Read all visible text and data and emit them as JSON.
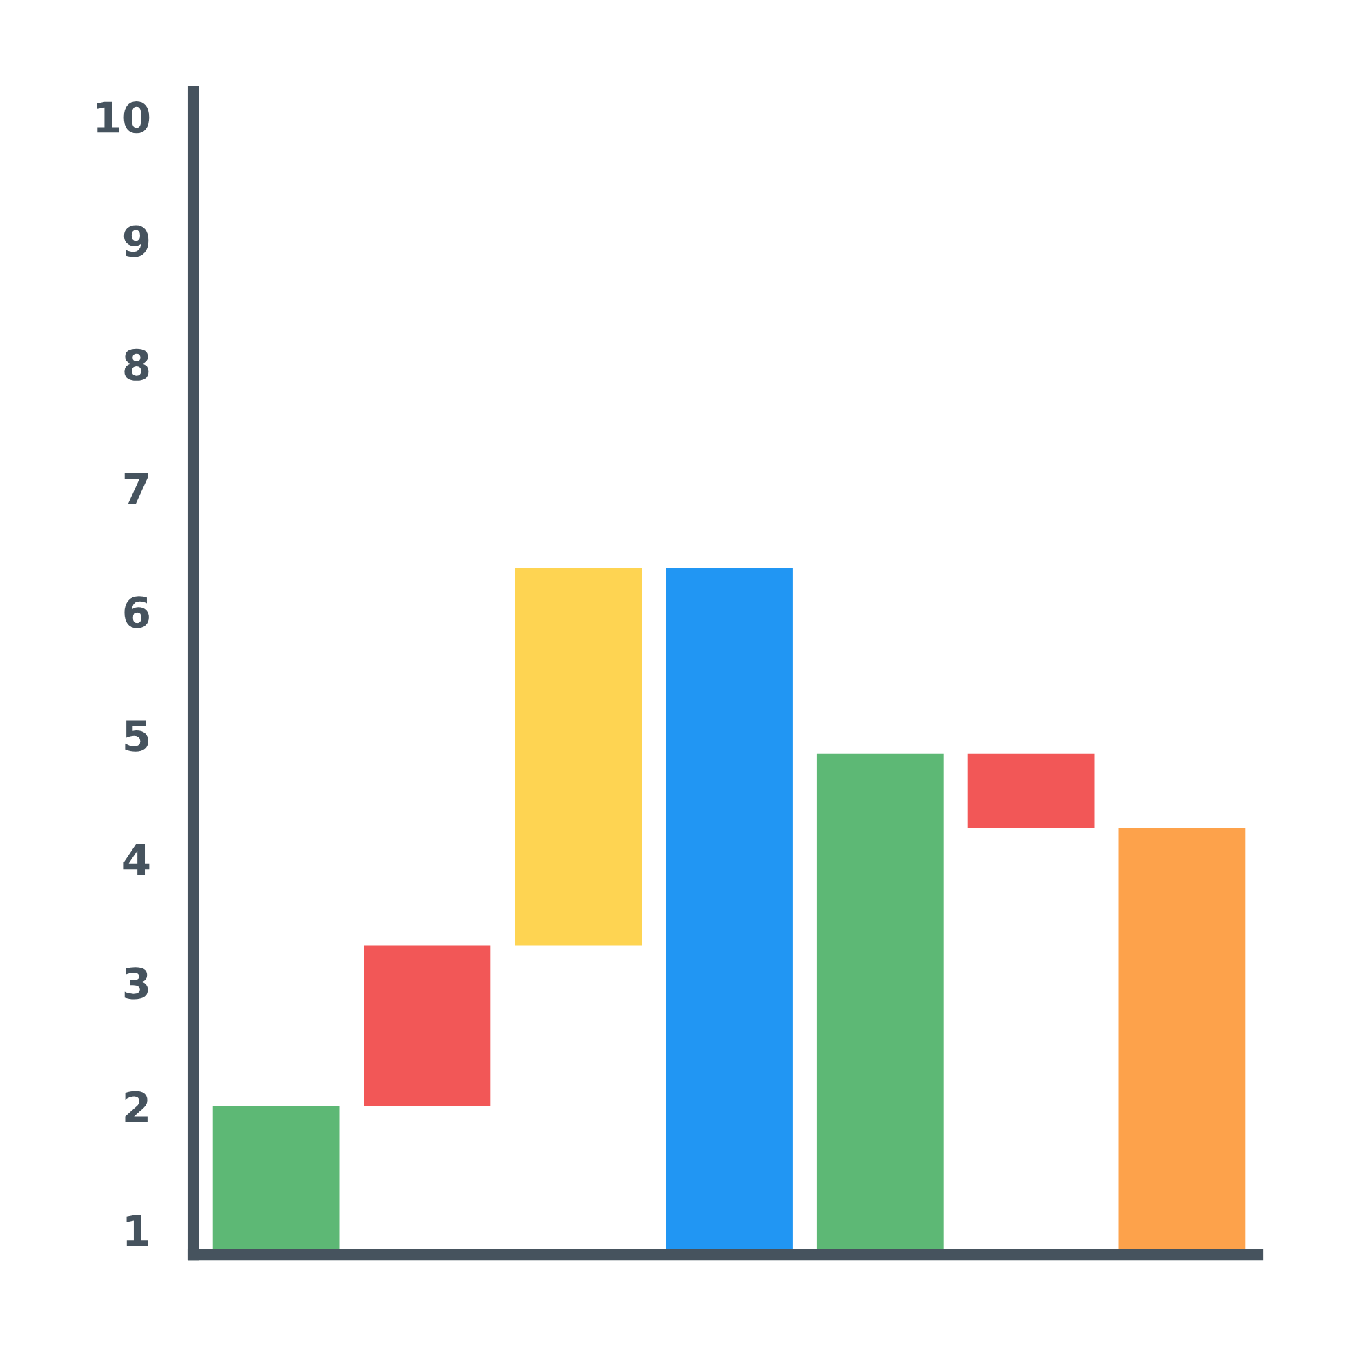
{
  "chart_data": {
    "type": "bar",
    "categories": [
      null,
      null,
      null,
      null,
      null,
      null,
      null
    ],
    "values": [
      1.2,
      1.3,
      3.05,
      5.55,
      4.05,
      0.6,
      3.45
    ],
    "base": [
      0.8,
      2.0,
      3.3,
      0.8,
      0.8,
      4.25,
      0.8
    ],
    "colors": [
      "#5db875",
      "#f25757",
      "#fed452",
      "#2196f3",
      "#5db875",
      "#f25757",
      "#fda24b"
    ],
    "ylim": [
      0.8,
      10.2
    ],
    "yticks": [
      1,
      2,
      3,
      4,
      5,
      6,
      7,
      8,
      9,
      10
    ],
    "tick_labels": "y",
    "grid": false,
    "legend": false
  }
}
